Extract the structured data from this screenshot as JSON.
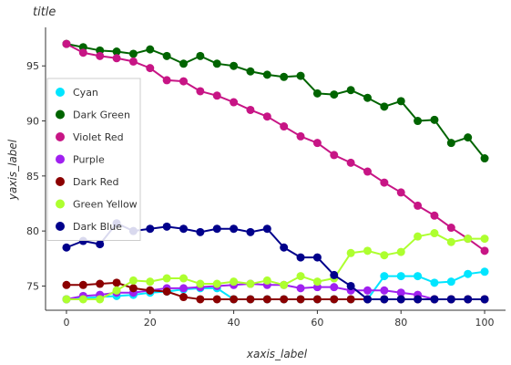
{
  "chart_data": {
    "type": "line",
    "title": "title",
    "xlabel": "xaxis_label",
    "ylabel": "yaxis_label",
    "xlim": [
      -5,
      105
    ],
    "ylim": [
      72.8,
      98.5
    ],
    "x_ticks": [
      0,
      20,
      40,
      60,
      80,
      100
    ],
    "y_ticks": [
      75,
      80,
      85,
      90,
      95
    ],
    "grid": false,
    "legend_position": "left",
    "x": [
      0,
      4,
      8,
      12,
      16,
      20,
      24,
      28,
      32,
      36,
      40,
      44,
      48,
      52,
      56,
      60,
      64,
      68,
      72,
      76,
      80,
      84,
      88,
      92,
      96,
      100
    ],
    "series": [
      {
        "name": "Cyan",
        "color": "#00e5ff",
        "marker": "circle",
        "values": [
          73.8,
          73.9,
          74.0,
          74.1,
          74.2,
          74.4,
          74.5,
          74.7,
          74.8,
          74.8,
          73.8,
          73.8,
          73.8,
          73.8,
          73.8,
          73.8,
          73.8,
          73.8,
          73.8,
          75.9,
          75.9,
          75.9,
          75.3,
          75.4,
          76.1,
          76.3
        ]
      },
      {
        "name": "Dark Green",
        "color": "#006400",
        "marker": "circle",
        "values": [
          97.0,
          96.7,
          96.4,
          96.3,
          96.1,
          96.5,
          95.9,
          95.2,
          95.9,
          95.2,
          95.0,
          94.5,
          94.2,
          94.0,
          94.1,
          92.5,
          92.4,
          92.8,
          92.1,
          91.3,
          91.8,
          90.0,
          90.1,
          88.0,
          88.5,
          86.6
        ]
      },
      {
        "name": "Violet Red",
        "color": "#c71585",
        "marker": "circle",
        "values": [
          97.0,
          96.2,
          95.9,
          95.7,
          95.4,
          94.8,
          93.7,
          93.6,
          92.7,
          92.3,
          91.7,
          91.0,
          90.4,
          89.5,
          88.6,
          88.0,
          86.9,
          86.2,
          85.4,
          84.4,
          83.5,
          82.3,
          81.4,
          80.3,
          79.3,
          78.2
        ]
      },
      {
        "name": "Purple",
        "color": "#a020f0",
        "marker": "circle",
        "values": [
          73.8,
          74.1,
          74.2,
          74.4,
          74.4,
          74.6,
          74.8,
          74.8,
          74.9,
          75.0,
          75.1,
          75.2,
          75.1,
          75.1,
          74.8,
          74.9,
          74.9,
          74.6,
          74.6,
          74.6,
          74.4,
          74.2,
          73.8,
          73.8,
          73.8,
          73.8
        ]
      },
      {
        "name": "Dark Red",
        "color": "#8b0000",
        "marker": "circle",
        "values": [
          75.1,
          75.1,
          75.2,
          75.3,
          74.8,
          74.6,
          74.5,
          74.0,
          73.8,
          73.8,
          73.8,
          73.8,
          73.8,
          73.8,
          73.8,
          73.8,
          73.8,
          73.8,
          73.8,
          73.8,
          73.8,
          73.8,
          73.8,
          73.8,
          73.8,
          73.8
        ]
      },
      {
        "name": "Green Yellow",
        "color": "#adff2f",
        "marker": "circle",
        "values": [
          73.8,
          73.8,
          73.8,
          74.6,
          75.5,
          75.4,
          75.7,
          75.7,
          75.2,
          75.2,
          75.4,
          75.2,
          75.5,
          75.1,
          75.9,
          75.4,
          75.7,
          78.0,
          78.2,
          77.8,
          78.1,
          79.5,
          79.8,
          79.0,
          79.3,
          79.3
        ]
      },
      {
        "name": "Dark Blue",
        "color": "#00008b",
        "marker": "circle",
        "values": [
          78.5,
          79.1,
          78.8,
          80.7,
          80.0,
          80.2,
          80.4,
          80.2,
          79.9,
          80.2,
          80.2,
          79.9,
          80.2,
          78.5,
          77.6,
          77.6,
          76.0,
          75.0,
          73.8,
          73.8,
          73.8,
          73.8,
          73.8,
          73.8,
          73.8,
          73.8
        ]
      }
    ]
  }
}
